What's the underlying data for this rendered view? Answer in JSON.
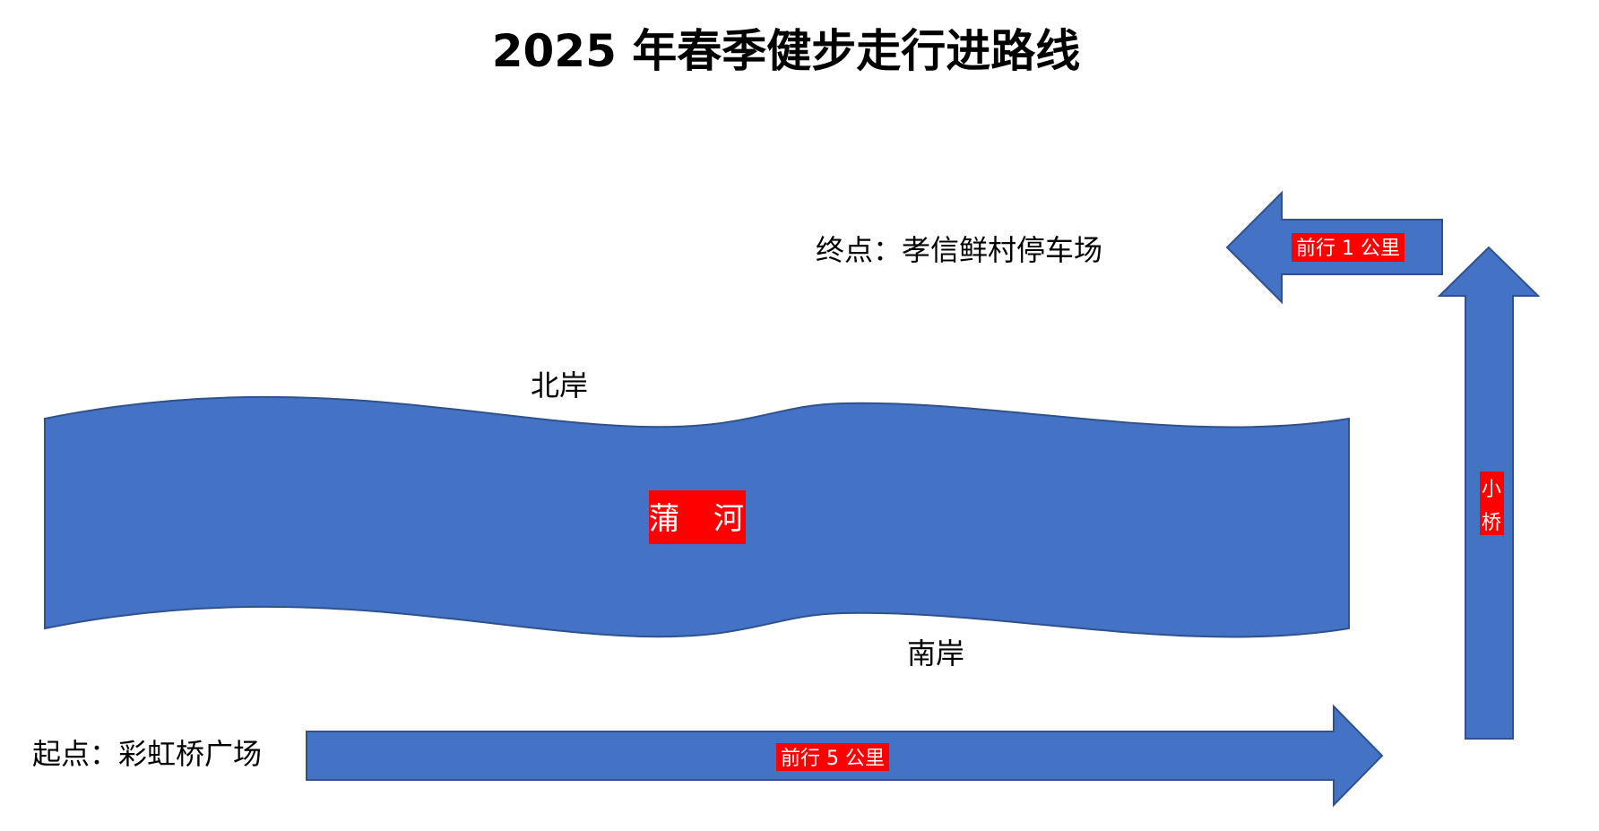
{
  "title": "2025 年春季健步走行进路线",
  "start_label": "起点：彩虹桥广场",
  "end_label": "终点：孝信鲜村停车场",
  "river": {
    "label_char_1": "蒲",
    "label_char_2": "河",
    "north_bank": "北岸",
    "south_bank": "南岸"
  },
  "arrows": {
    "east": {
      "label": "前行 5 公里",
      "direction": "right"
    },
    "north": {
      "label_line_1": "小",
      "label_line_2": "桥",
      "direction": "up"
    },
    "west": {
      "label": "前行 1 公里",
      "direction": "left"
    }
  },
  "colors": {
    "shape_fill": "#4472c4",
    "shape_outline": "#2f528f",
    "label_box": "#ff0000",
    "label_text": "#ffffff"
  }
}
